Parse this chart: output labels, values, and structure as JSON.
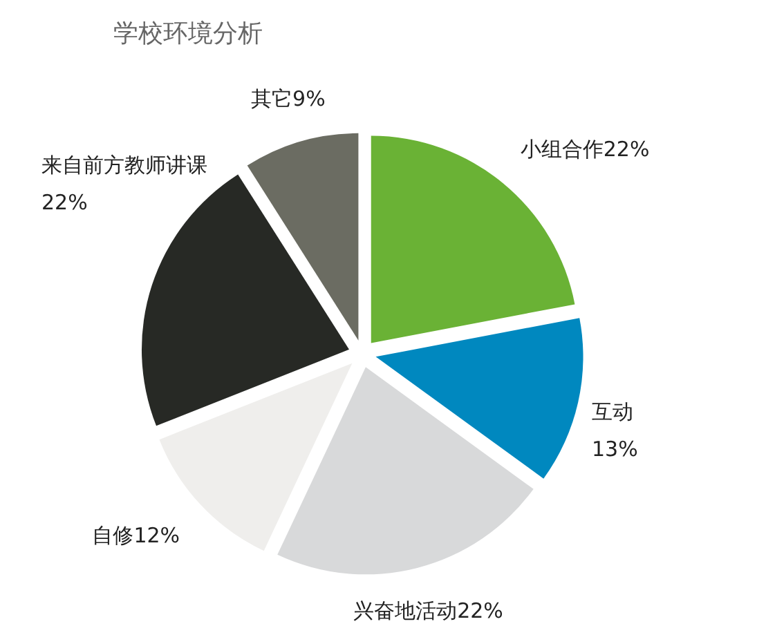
{
  "chart_data": {
    "type": "pie",
    "title": "学校环境分析",
    "categories": [
      "小组合作",
      "互动",
      "兴奋地活动",
      "自修",
      "来自前方教师讲课",
      "其它"
    ],
    "values": [
      22,
      13,
      22,
      12,
      22,
      9
    ],
    "value_labels": [
      "22%",
      "13%",
      "22%",
      "12%",
      "22%",
      "9%"
    ],
    "colors": [
      "#6ab235",
      "#0088bf",
      "#d8d9da",
      "#efeeec",
      "#272925",
      "#6b6c62"
    ]
  }
}
